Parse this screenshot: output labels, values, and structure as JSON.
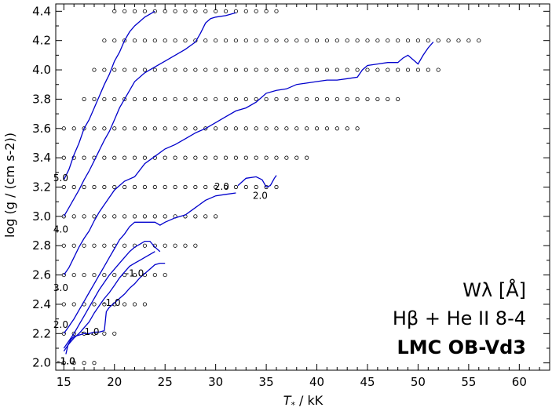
{
  "chart_data": {
    "type": "line",
    "title": "",
    "xlabel": "T",
    "xlabel_sub": "*",
    "xlabel_unit": " / kK",
    "ylabel": "log (g / (cm s-2))",
    "xlim": [
      14.2,
      63.0
    ],
    "ylim": [
      1.95,
      4.45
    ],
    "x_ticks": [
      15,
      20,
      25,
      30,
      35,
      40,
      45,
      50,
      55,
      60
    ],
    "y_ticks": [
      2.0,
      2.2,
      2.4,
      2.6,
      2.8,
      3.0,
      3.2,
      3.4,
      3.6,
      3.8,
      4.0,
      4.2,
      4.4
    ],
    "x_tick_labels": [
      "15",
      "20",
      "25",
      "30",
      "35",
      "40",
      "45",
      "50",
      "55",
      "60"
    ],
    "y_tick_labels": [
      "2.0",
      "2.2",
      "2.4",
      "2.6",
      "2.8",
      "3.0",
      "3.2",
      "3.4",
      "3.6",
      "3.8",
      "4.0",
      "4.2",
      "4.4"
    ],
    "line_color": "#0000cc",
    "grid": false,
    "annotations": {
      "line1": "Wλ  [Å]",
      "line2": "Hβ + He II 8-4",
      "line3": "LMC OB-Vd3"
    },
    "model_grid": [
      {
        "logg": 4.4,
        "t_min": 20,
        "t_max": 36
      },
      {
        "logg": 4.2,
        "t_min": 19,
        "t_max": 56
      },
      {
        "logg": 4.0,
        "t_min": 18,
        "t_max": 52
      },
      {
        "logg": 3.8,
        "t_min": 17,
        "t_max": 48
      },
      {
        "logg": 3.6,
        "t_min": 15,
        "t_max": 44
      },
      {
        "logg": 3.4,
        "t_min": 15,
        "t_max": 39
      },
      {
        "logg": 3.2,
        "t_min": 15,
        "t_max": 36
      },
      {
        "logg": 3.0,
        "t_min": 15,
        "t_max": 30
      },
      {
        "logg": 2.8,
        "t_min": 15,
        "t_max": 28
      },
      {
        "logg": 2.6,
        "t_min": 15,
        "t_max": 25
      },
      {
        "logg": 2.4,
        "t_min": 15,
        "t_max": 23
      },
      {
        "logg": 2.2,
        "t_min": 15,
        "t_max": 20
      },
      {
        "logg": 2.0,
        "t_min": 15,
        "t_max": 18
      }
    ],
    "series": [
      {
        "name": "5.0",
        "points": [
          [
            15.0,
            3.25
          ],
          [
            15.5,
            3.32
          ],
          [
            16.0,
            3.42
          ],
          [
            16.5,
            3.5
          ],
          [
            17.0,
            3.6
          ],
          [
            17.5,
            3.66
          ],
          [
            18.0,
            3.74
          ],
          [
            18.5,
            3.82
          ],
          [
            19.0,
            3.9
          ],
          [
            19.5,
            3.97
          ],
          [
            20.0,
            4.06
          ],
          [
            20.5,
            4.12
          ],
          [
            21.0,
            4.2
          ],
          [
            21.5,
            4.26
          ],
          [
            22.0,
            4.3
          ],
          [
            22.5,
            4.33
          ],
          [
            23.0,
            4.36
          ],
          [
            23.5,
            4.38
          ],
          [
            24.0,
            4.4
          ]
        ]
      },
      {
        "name": "4.0",
        "points": [
          [
            15.0,
            3.0
          ],
          [
            15.5,
            3.06
          ],
          [
            16.0,
            3.12
          ],
          [
            16.5,
            3.18
          ],
          [
            17.0,
            3.25
          ],
          [
            17.5,
            3.31
          ],
          [
            18.0,
            3.38
          ],
          [
            18.5,
            3.45
          ],
          [
            19.0,
            3.52
          ],
          [
            19.5,
            3.58
          ],
          [
            20.0,
            3.66
          ],
          [
            20.5,
            3.74
          ],
          [
            21.0,
            3.8
          ],
          [
            21.5,
            3.86
          ],
          [
            22.0,
            3.92
          ],
          [
            23.0,
            3.98
          ],
          [
            24.0,
            4.02
          ],
          [
            25.0,
            4.06
          ],
          [
            26.0,
            4.1
          ],
          [
            27.0,
            4.14
          ],
          [
            28.0,
            4.19
          ],
          [
            28.5,
            4.25
          ],
          [
            29.0,
            4.32
          ],
          [
            29.5,
            4.35
          ],
          [
            30.0,
            4.36
          ],
          [
            31.0,
            4.37
          ],
          [
            32.0,
            4.39
          ]
        ]
      },
      {
        "name": "3.0",
        "points": [
          [
            15.0,
            2.6
          ],
          [
            15.5,
            2.65
          ],
          [
            16.0,
            2.72
          ],
          [
            16.5,
            2.79
          ],
          [
            17.0,
            2.85
          ],
          [
            17.5,
            2.9
          ],
          [
            18.0,
            2.97
          ],
          [
            18.5,
            3.03
          ],
          [
            19.0,
            3.08
          ],
          [
            19.5,
            3.13
          ],
          [
            20.0,
            3.18
          ],
          [
            21.0,
            3.24
          ],
          [
            22.0,
            3.27
          ],
          [
            23.0,
            3.36
          ],
          [
            24.0,
            3.41
          ],
          [
            25.0,
            3.46
          ],
          [
            26.0,
            3.49
          ],
          [
            27.0,
            3.53
          ],
          [
            28.0,
            3.57
          ],
          [
            29.0,
            3.6
          ],
          [
            30.0,
            3.64
          ],
          [
            31.0,
            3.68
          ],
          [
            32.0,
            3.72
          ],
          [
            33.0,
            3.74
          ],
          [
            34.0,
            3.78
          ],
          [
            35.0,
            3.84
          ],
          [
            36.0,
            3.86
          ],
          [
            37.0,
            3.87
          ],
          [
            38.0,
            3.9
          ],
          [
            39.0,
            3.91
          ],
          [
            40.0,
            3.92
          ],
          [
            41.0,
            3.93
          ],
          [
            42.0,
            3.93
          ],
          [
            43.0,
            3.94
          ],
          [
            44.0,
            3.95
          ],
          [
            44.5,
            4.0
          ],
          [
            45.0,
            4.03
          ],
          [
            46.0,
            4.04
          ],
          [
            47.0,
            4.05
          ],
          [
            48.0,
            4.05
          ],
          [
            48.5,
            4.08
          ],
          [
            49.0,
            4.1
          ],
          [
            49.5,
            4.07
          ],
          [
            50.0,
            4.04
          ],
          [
            50.5,
            4.1
          ],
          [
            51.0,
            4.15
          ],
          [
            51.5,
            4.19
          ]
        ]
      },
      {
        "name": "2.0",
        "points": [
          [
            15.0,
            2.2
          ],
          [
            15.5,
            2.25
          ],
          [
            16.0,
            2.3
          ],
          [
            16.5,
            2.36
          ],
          [
            17.0,
            2.42
          ],
          [
            17.5,
            2.48
          ],
          [
            18.0,
            2.54
          ],
          [
            18.5,
            2.6
          ],
          [
            19.0,
            2.66
          ],
          [
            19.5,
            2.72
          ],
          [
            20.0,
            2.78
          ],
          [
            20.5,
            2.84
          ],
          [
            21.0,
            2.88
          ],
          [
            21.5,
            2.93
          ],
          [
            22.0,
            2.96
          ],
          [
            23.0,
            2.96
          ],
          [
            24.0,
            2.96
          ],
          [
            24.5,
            2.94
          ],
          [
            25.0,
            2.96
          ],
          [
            26.0,
            2.99
          ],
          [
            27.0,
            3.01
          ],
          [
            28.0,
            3.06
          ],
          [
            29.0,
            3.11
          ],
          [
            30.0,
            3.14
          ],
          [
            31.0,
            3.15
          ],
          [
            32.0,
            3.16
          ]
        ]
      },
      {
        "name": "2.0",
        "points": [
          [
            32.2,
            3.21
          ],
          [
            33.0,
            3.26
          ],
          [
            34.0,
            3.27
          ],
          [
            34.6,
            3.25
          ],
          [
            35.0,
            3.2
          ],
          [
            35.4,
            3.21
          ],
          [
            35.8,
            3.26
          ],
          [
            36.0,
            3.28
          ]
        ]
      },
      {
        "name": "-1.0",
        "points": [
          [
            15.0,
            2.1
          ],
          [
            15.5,
            2.15
          ],
          [
            16.0,
            2.2
          ],
          [
            16.5,
            2.26
          ],
          [
            17.0,
            2.32
          ],
          [
            17.5,
            2.38
          ],
          [
            18.0,
            2.44
          ],
          [
            18.5,
            2.5
          ],
          [
            19.0,
            2.55
          ],
          [
            19.5,
            2.6
          ],
          [
            20.0,
            2.64
          ],
          [
            20.5,
            2.68
          ],
          [
            21.0,
            2.72
          ],
          [
            21.5,
            2.76
          ],
          [
            22.0,
            2.79
          ],
          [
            22.5,
            2.81
          ],
          [
            23.0,
            2.83
          ],
          [
            23.5,
            2.83
          ],
          [
            24.0,
            2.79
          ],
          [
            24.5,
            2.76
          ]
        ]
      },
      {
        "name": "-1.0",
        "points": [
          [
            15.0,
            2.08
          ],
          [
            15.5,
            2.13
          ],
          [
            16.0,
            2.17
          ],
          [
            16.5,
            2.2
          ],
          [
            17.0,
            2.24
          ],
          [
            17.5,
            2.28
          ],
          [
            18.0,
            2.34
          ],
          [
            18.5,
            2.39
          ],
          [
            19.0,
            2.44
          ],
          [
            19.5,
            2.48
          ],
          [
            20.0,
            2.53
          ],
          [
            20.5,
            2.58
          ],
          [
            21.0,
            2.62
          ],
          [
            21.5,
            2.66
          ],
          [
            22.0,
            2.68
          ],
          [
            22.5,
            2.7
          ],
          [
            23.0,
            2.72
          ],
          [
            23.5,
            2.74
          ],
          [
            24.0,
            2.76
          ]
        ]
      },
      {
        "name": "-1.0",
        "points": [
          [
            19.0,
            2.22
          ],
          [
            19.2,
            2.35
          ],
          [
            19.5,
            2.38
          ],
          [
            20.0,
            2.41
          ],
          [
            20.5,
            2.44
          ],
          [
            21.0,
            2.47
          ],
          [
            21.5,
            2.51
          ],
          [
            22.0,
            2.54
          ],
          [
            22.5,
            2.58
          ],
          [
            23.0,
            2.61
          ],
          [
            23.5,
            2.64
          ],
          [
            24.0,
            2.67
          ],
          [
            24.5,
            2.68
          ],
          [
            25.0,
            2.68
          ]
        ]
      },
      {
        "name": "-1.0",
        "points": [
          [
            15.2,
            2.06
          ],
          [
            15.4,
            2.12
          ],
          [
            15.7,
            2.16
          ],
          [
            16.0,
            2.18
          ],
          [
            16.5,
            2.19
          ],
          [
            17.0,
            2.2
          ],
          [
            17.5,
            2.2
          ],
          [
            18.0,
            2.21
          ],
          [
            18.5,
            2.21
          ],
          [
            19.0,
            2.22
          ]
        ]
      }
    ],
    "contour_labels": [
      {
        "text": "5.0",
        "x": 14.7,
        "y": 3.24
      },
      {
        "text": "4.0",
        "x": 14.7,
        "y": 2.89
      },
      {
        "text": "3.0",
        "x": 14.7,
        "y": 2.49
      },
      {
        "text": "2.0",
        "x": 14.7,
        "y": 2.24
      },
      {
        "text": "2.0",
        "x": 30.6,
        "y": 3.18
      },
      {
        "text": "2.0",
        "x": 34.4,
        "y": 3.12
      },
      {
        "text": "-1.0",
        "x": 15.2,
        "y": 1.99
      },
      {
        "text": "-1.0",
        "x": 17.6,
        "y": 2.19
      },
      {
        "text": "-1.0",
        "x": 19.7,
        "y": 2.39
      },
      {
        "text": "-1.0",
        "x": 22.0,
        "y": 2.59
      },
      {
        "text": "1.0",
        "x": 15.4,
        "y": 1.99
      }
    ]
  }
}
